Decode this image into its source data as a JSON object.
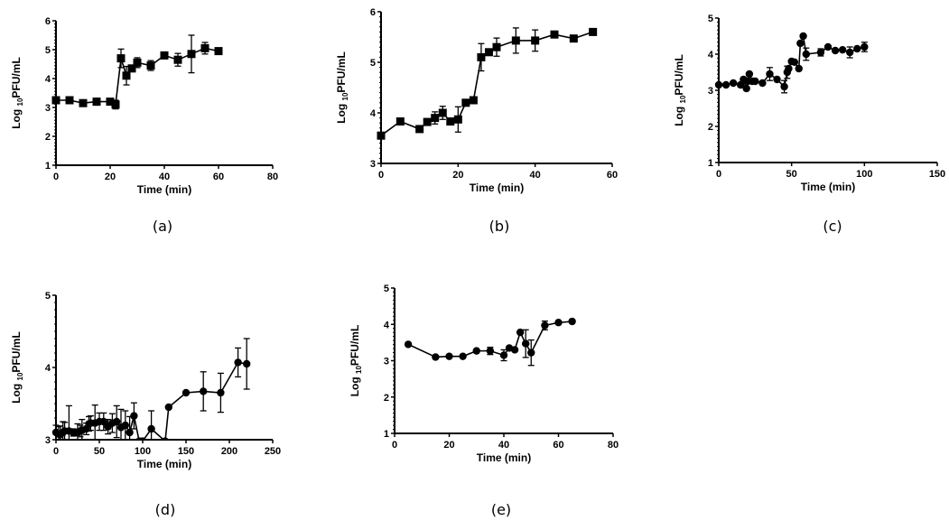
{
  "chart_data": [
    {
      "id": "a",
      "type": "line",
      "panel_label": "(a)",
      "xlabel": "Time (min)",
      "ylabel_main": "Log ",
      "ylabel_sub": "10",
      "ylabel_rest": "PFU/mL",
      "xlim": [
        0,
        80
      ],
      "ylim": [
        1,
        6
      ],
      "xticks": [
        0,
        20,
        40,
        60,
        80
      ],
      "yticks": [
        1,
        2,
        3,
        4,
        5,
        6
      ],
      "marker": "square",
      "points": [
        {
          "x": 0,
          "y": 3.25,
          "err": 0.08
        },
        {
          "x": 5,
          "y": 3.25,
          "err": 0.05
        },
        {
          "x": 10,
          "y": 3.15,
          "err": 0.05
        },
        {
          "x": 15,
          "y": 3.2,
          "err": 0.12
        },
        {
          "x": 20,
          "y": 3.2,
          "err": 0.06
        },
        {
          "x": 22,
          "y": 3.1,
          "err": 0.15
        },
        {
          "x": 24,
          "y": 4.7,
          "err": 0.32
        },
        {
          "x": 26,
          "y": 4.1,
          "err": 0.32
        },
        {
          "x": 28,
          "y": 4.35,
          "err": 0.05
        },
        {
          "x": 30,
          "y": 4.55,
          "err": 0.17
        },
        {
          "x": 35,
          "y": 4.45,
          "err": 0.17
        },
        {
          "x": 40,
          "y": 4.8,
          "err": 0.05
        },
        {
          "x": 45,
          "y": 4.65,
          "err": 0.22
        },
        {
          "x": 50,
          "y": 4.85,
          "err": 0.65
        },
        {
          "x": 55,
          "y": 5.05,
          "err": 0.2
        },
        {
          "x": 60,
          "y": 4.95,
          "err": 0.05
        }
      ]
    },
    {
      "id": "b",
      "type": "line",
      "panel_label": "(b)",
      "xlabel": "Time (min)",
      "ylabel_main": "Log ",
      "ylabel_sub": "10",
      "ylabel_rest": "PFU/mL",
      "xlim": [
        0,
        60
      ],
      "ylim": [
        3,
        6
      ],
      "xticks": [
        0,
        20,
        40,
        60
      ],
      "yticks": [
        3,
        4,
        5,
        6
      ],
      "marker": "square",
      "points": [
        {
          "x": 0,
          "y": 3.55,
          "err": 0.05
        },
        {
          "x": 5,
          "y": 3.83,
          "err": 0.03
        },
        {
          "x": 10,
          "y": 3.68,
          "err": 0.03
        },
        {
          "x": 12,
          "y": 3.82,
          "err": 0.04
        },
        {
          "x": 14,
          "y": 3.9,
          "err": 0.12
        },
        {
          "x": 16,
          "y": 4.0,
          "err": 0.13
        },
        {
          "x": 18,
          "y": 3.83,
          "err": 0.03
        },
        {
          "x": 20,
          "y": 3.87,
          "err": 0.25
        },
        {
          "x": 22,
          "y": 4.2,
          "err": 0.03
        },
        {
          "x": 24,
          "y": 4.25,
          "err": 0.03
        },
        {
          "x": 26,
          "y": 5.1,
          "err": 0.27
        },
        {
          "x": 28,
          "y": 5.2,
          "err": 0.03
        },
        {
          "x": 30,
          "y": 5.3,
          "err": 0.18
        },
        {
          "x": 35,
          "y": 5.43,
          "err": 0.25
        },
        {
          "x": 40,
          "y": 5.43,
          "err": 0.21
        },
        {
          "x": 45,
          "y": 5.55,
          "err": 0.03
        },
        {
          "x": 50,
          "y": 5.47,
          "err": 0.03
        },
        {
          "x": 55,
          "y": 5.6,
          "err": 0.03
        }
      ]
    },
    {
      "id": "c",
      "type": "line",
      "panel_label": "(c)",
      "xlabel": "Time (min)",
      "ylabel_main": "Log ",
      "ylabel_sub": "10",
      "ylabel_rest": "PFU/mL",
      "xlim": [
        0,
        150
      ],
      "ylim": [
        1,
        5
      ],
      "xticks": [
        0,
        50,
        100,
        150
      ],
      "yticks": [
        1,
        2,
        3,
        4,
        5
      ],
      "marker": "circle",
      "points": [
        {
          "x": 0,
          "y": 3.15,
          "err": 0.03
        },
        {
          "x": 5,
          "y": 3.15,
          "err": 0.03
        },
        {
          "x": 10,
          "y": 3.2,
          "err": 0.03
        },
        {
          "x": 15,
          "y": 3.15,
          "err": 0.05
        },
        {
          "x": 17,
          "y": 3.3,
          "err": 0.05
        },
        {
          "x": 19,
          "y": 3.05,
          "err": 0.04
        },
        {
          "x": 20,
          "y": 3.25,
          "err": 0.04
        },
        {
          "x": 21,
          "y": 3.45,
          "err": 0.04
        },
        {
          "x": 23,
          "y": 3.25,
          "err": 0.04
        },
        {
          "x": 25,
          "y": 3.25,
          "err": 0.04
        },
        {
          "x": 30,
          "y": 3.2,
          "err": 0.03
        },
        {
          "x": 35,
          "y": 3.45,
          "err": 0.18
        },
        {
          "x": 40,
          "y": 3.3,
          "err": 0.03
        },
        {
          "x": 45,
          "y": 3.1,
          "err": 0.17
        },
        {
          "x": 47,
          "y": 3.5,
          "err": 0.17
        },
        {
          "x": 48,
          "y": 3.6,
          "err": 0.04
        },
        {
          "x": 50,
          "y": 3.8,
          "err": 0.04
        },
        {
          "x": 52,
          "y": 3.78,
          "err": 0.04
        },
        {
          "x": 55,
          "y": 3.6,
          "err": 0.04
        },
        {
          "x": 56,
          "y": 4.3,
          "err": 0.04
        },
        {
          "x": 58,
          "y": 4.5,
          "err": 0.04
        },
        {
          "x": 60,
          "y": 4.0,
          "err": 0.17
        },
        {
          "x": 70,
          "y": 4.05,
          "err": 0.1
        },
        {
          "x": 75,
          "y": 4.2,
          "err": 0.03
        },
        {
          "x": 80,
          "y": 4.1,
          "err": 0.03
        },
        {
          "x": 85,
          "y": 4.12,
          "err": 0.03
        },
        {
          "x": 90,
          "y": 4.05,
          "err": 0.15
        },
        {
          "x": 95,
          "y": 4.15,
          "err": 0.03
        },
        {
          "x": 100,
          "y": 4.2,
          "err": 0.13
        }
      ]
    },
    {
      "id": "d",
      "type": "line",
      "panel_label": "(d)",
      "xlabel": "Time (min)",
      "ylabel_main": "Log ",
      "ylabel_sub": "10",
      "ylabel_rest": "PFU/mL",
      "xlim": [
        0,
        250
      ],
      "ylim": [
        3,
        5
      ],
      "xticks": [
        0,
        50,
        100,
        150,
        200,
        250
      ],
      "yticks": [
        3,
        4,
        5
      ],
      "marker": "circle",
      "points": [
        {
          "x": 0,
          "y": 3.1,
          "err": 0.1
        },
        {
          "x": 3,
          "y": 3.08,
          "err": 0.1
        },
        {
          "x": 5,
          "y": 3.07,
          "err": 0.12
        },
        {
          "x": 8,
          "y": 3.1,
          "err": 0.15
        },
        {
          "x": 10,
          "y": 3.12,
          "err": 0.12
        },
        {
          "x": 15,
          "y": 3.12,
          "err": 0.35
        },
        {
          "x": 20,
          "y": 3.1,
          "err": 0.05
        },
        {
          "x": 25,
          "y": 3.1,
          "err": 0.12
        },
        {
          "x": 28,
          "y": 3.12,
          "err": 0.08
        },
        {
          "x": 30,
          "y": 3.13,
          "err": 0.15
        },
        {
          "x": 35,
          "y": 3.15,
          "err": 0.08
        },
        {
          "x": 38,
          "y": 3.22,
          "err": 0.1
        },
        {
          "x": 40,
          "y": 3.23,
          "err": 0.1
        },
        {
          "x": 45,
          "y": 3.23,
          "err": 0.25
        },
        {
          "x": 50,
          "y": 3.25,
          "err": 0.12
        },
        {
          "x": 55,
          "y": 3.25,
          "err": 0.12
        },
        {
          "x": 60,
          "y": 3.18,
          "err": 0.1
        },
        {
          "x": 65,
          "y": 3.23,
          "err": 0.13
        },
        {
          "x": 70,
          "y": 3.25,
          "err": 0.22
        },
        {
          "x": 75,
          "y": 3.17,
          "err": 0.25
        },
        {
          "x": 80,
          "y": 3.2,
          "err": 0.2
        },
        {
          "x": 85,
          "y": 3.1,
          "err": 0.22
        },
        {
          "x": 90,
          "y": 3.33,
          "err": 0.18
        },
        {
          "x": 96,
          "y": 2.98,
          "err": 0
        },
        {
          "x": 100,
          "y": 2.98,
          "err": 0
        },
        {
          "x": 110,
          "y": 3.15,
          "err": 0.25
        },
        {
          "x": 126,
          "y": 2.98,
          "err": 0
        },
        {
          "x": 130,
          "y": 3.45,
          "err": 0
        },
        {
          "x": 150,
          "y": 3.65,
          "err": 0
        },
        {
          "x": 170,
          "y": 3.67,
          "err": 0.27
        },
        {
          "x": 190,
          "y": 3.65,
          "err": 0.27
        },
        {
          "x": 210,
          "y": 4.07,
          "err": 0.2
        },
        {
          "x": 220,
          "y": 4.05,
          "err": 0.35
        }
      ]
    },
    {
      "id": "e",
      "type": "line",
      "panel_label": "(e)",
      "xlabel": "Time (min)",
      "ylabel_main": "Log ",
      "ylabel_sub": "10",
      "ylabel_rest": "PFU/mL",
      "xlim": [
        0,
        80
      ],
      "ylim": [
        1,
        5
      ],
      "xticks": [
        0,
        20,
        40,
        60,
        80
      ],
      "yticks": [
        1,
        2,
        3,
        4,
        5
      ],
      "marker": "circle",
      "points": [
        {
          "x": 5,
          "y": 3.45,
          "err": 0.03
        },
        {
          "x": 15,
          "y": 3.1,
          "err": 0.03
        },
        {
          "x": 20,
          "y": 3.12,
          "err": 0.03
        },
        {
          "x": 25,
          "y": 3.12,
          "err": 0.03
        },
        {
          "x": 30,
          "y": 3.27,
          "err": 0.03
        },
        {
          "x": 35,
          "y": 3.27,
          "err": 0.1
        },
        {
          "x": 40,
          "y": 3.15,
          "err": 0.15
        },
        {
          "x": 42,
          "y": 3.35,
          "err": 0.03
        },
        {
          "x": 44,
          "y": 3.3,
          "err": 0.03
        },
        {
          "x": 46,
          "y": 3.78,
          "err": 0.03
        },
        {
          "x": 48,
          "y": 3.47,
          "err": 0.38
        },
        {
          "x": 50,
          "y": 3.22,
          "err": 0.35
        },
        {
          "x": 55,
          "y": 3.97,
          "err": 0.12
        },
        {
          "x": 60,
          "y": 4.05,
          "err": 0.03
        },
        {
          "x": 65,
          "y": 4.08,
          "err": 0.03
        }
      ]
    }
  ]
}
